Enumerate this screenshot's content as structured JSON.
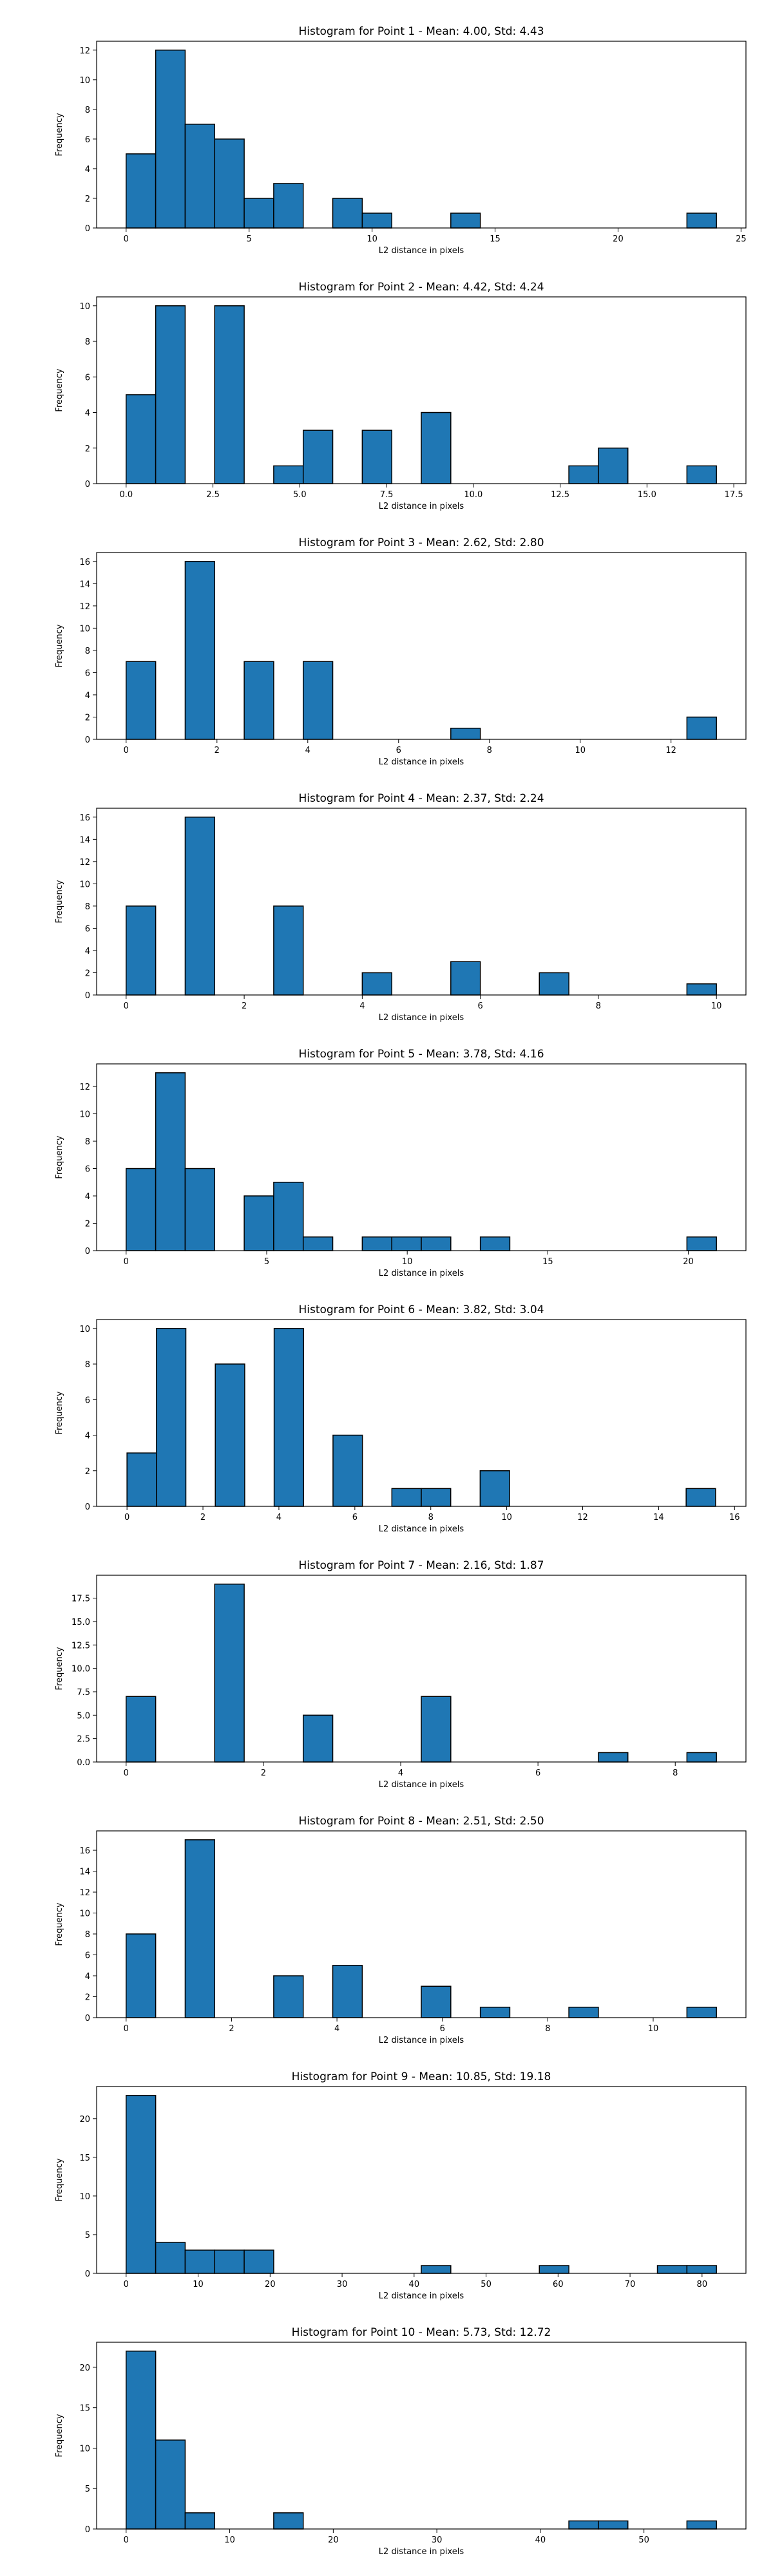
{
  "style": {
    "bar_color": "#1f77b4",
    "edge_color": "#000000",
    "background": "#ffffff"
  },
  "chart_data": [
    {
      "type": "bar",
      "title": "Histogram for Point 1 - Mean: 4.00, Std: 4.43",
      "xlabel": "L2 distance in pixels",
      "ylabel": "Frequency",
      "xlim": [
        -1.2,
        25.2
      ],
      "ylim": [
        0,
        12.6
      ],
      "xticks": [
        0,
        5,
        10,
        15,
        20,
        25
      ],
      "xtick_labels": [
        "0",
        "5",
        "10",
        "15",
        "20",
        "25"
      ],
      "yticks": [
        0,
        2,
        4,
        6,
        8,
        10,
        12
      ],
      "ytick_labels": [
        "0",
        "2",
        "4",
        "6",
        "8",
        "10",
        "12"
      ],
      "bin_edges": [
        0.0,
        1.2,
        2.4,
        3.6,
        4.8,
        6.0,
        7.2,
        8.4,
        9.6,
        10.8,
        12.0,
        13.2,
        14.4,
        15.6,
        16.8,
        18.0,
        19.2,
        20.4,
        21.6,
        22.8,
        24.0
      ],
      "values": [
        5,
        12,
        7,
        6,
        2,
        3,
        0,
        2,
        1,
        0,
        0,
        1,
        0,
        0,
        0,
        0,
        0,
        0,
        0,
        1
      ],
      "grid": false
    },
    {
      "type": "bar",
      "title": "Histogram for Point 2 - Mean: 4.42, Std: 4.24",
      "xlabel": "L2 distance in pixels",
      "ylabel": "Frequency",
      "xlim": [
        -0.85,
        17.85
      ],
      "ylim": [
        0,
        10.5
      ],
      "xticks": [
        0.0,
        2.5,
        5.0,
        7.5,
        10.0,
        12.5,
        15.0,
        17.5
      ],
      "xtick_labels": [
        "0.0",
        "2.5",
        "5.0",
        "7.5",
        "10.0",
        "12.5",
        "15.0",
        "17.5"
      ],
      "yticks": [
        0,
        2,
        4,
        6,
        8,
        10
      ],
      "ytick_labels": [
        "0",
        "2",
        "4",
        "6",
        "8",
        "10"
      ],
      "bin_edges": [
        0.0,
        0.85,
        1.7,
        2.55,
        3.4,
        4.25,
        5.1,
        5.95,
        6.8,
        7.65,
        8.5,
        9.35,
        10.2,
        11.05,
        11.9,
        12.75,
        13.6,
        14.45,
        15.3,
        16.15,
        17.0
      ],
      "values": [
        5,
        10,
        0,
        10,
        0,
        1,
        3,
        0,
        3,
        0,
        4,
        0,
        0,
        0,
        0,
        1,
        2,
        0,
        0,
        1
      ],
      "grid": false
    },
    {
      "type": "bar",
      "title": "Histogram for Point 3 - Mean: 2.62, Std: 2.80",
      "xlabel": "L2 distance in pixels",
      "ylabel": "Frequency",
      "xlim": [
        -0.65,
        13.65
      ],
      "ylim": [
        0,
        16.8
      ],
      "xticks": [
        0,
        2,
        4,
        6,
        8,
        10,
        12
      ],
      "xtick_labels": [
        "0",
        "2",
        "4",
        "6",
        "8",
        "10",
        "12"
      ],
      "yticks": [
        0,
        2,
        4,
        6,
        8,
        10,
        12,
        14,
        16
      ],
      "ytick_labels": [
        "0",
        "2",
        "4",
        "6",
        "8",
        "10",
        "12",
        "14",
        "16"
      ],
      "bin_edges": [
        0.0,
        0.65,
        1.3,
        1.95,
        2.6,
        3.25,
        3.9,
        4.55,
        5.2,
        5.85,
        6.5,
        7.15,
        7.8,
        8.45,
        9.1,
        9.75,
        10.4,
        11.05,
        11.7,
        12.35,
        13.0
      ],
      "values": [
        7,
        0,
        16,
        0,
        7,
        0,
        7,
        0,
        0,
        0,
        0,
        1,
        0,
        0,
        0,
        0,
        0,
        0,
        0,
        2
      ],
      "grid": false
    },
    {
      "type": "bar",
      "title": "Histogram for Point 4 - Mean: 2.37, Std: 2.24",
      "xlabel": "L2 distance in pixels",
      "ylabel": "Frequency",
      "xlim": [
        -0.5,
        10.5
      ],
      "ylim": [
        0,
        16.8
      ],
      "xticks": [
        0,
        2,
        4,
        6,
        8,
        10
      ],
      "xtick_labels": [
        "0",
        "2",
        "4",
        "6",
        "8",
        "10"
      ],
      "yticks": [
        0,
        2,
        4,
        6,
        8,
        10,
        12,
        14,
        16
      ],
      "ytick_labels": [
        "0",
        "2",
        "4",
        "6",
        "8",
        "10",
        "12",
        "14",
        "16"
      ],
      "bin_edges": [
        0.0,
        0.5,
        1.0,
        1.5,
        2.0,
        2.5,
        3.0,
        3.5,
        4.0,
        4.5,
        5.0,
        5.5,
        6.0,
        6.5,
        7.0,
        7.5,
        8.0,
        8.5,
        9.0,
        9.5,
        10.0
      ],
      "values": [
        8,
        0,
        16,
        0,
        0,
        8,
        0,
        0,
        2,
        0,
        0,
        3,
        0,
        0,
        2,
        0,
        0,
        0,
        0,
        1
      ],
      "grid": false
    },
    {
      "type": "bar",
      "title": "Histogram for Point 5 - Mean: 3.78, Std: 4.16",
      "xlabel": "L2 distance in pixels",
      "ylabel": "Frequency",
      "xlim": [
        -1.05,
        22.05
      ],
      "ylim": [
        0,
        13.65
      ],
      "xticks": [
        0,
        5,
        10,
        15,
        20
      ],
      "xtick_labels": [
        "0",
        "5",
        "10",
        "15",
        "20"
      ],
      "yticks": [
        0,
        2,
        4,
        6,
        8,
        10,
        12
      ],
      "ytick_labels": [
        "0",
        "2",
        "4",
        "6",
        "8",
        "10",
        "12"
      ],
      "bin_edges": [
        0.0,
        1.05,
        2.1,
        3.15,
        4.2,
        5.25,
        6.3,
        7.35,
        8.4,
        9.45,
        10.5,
        11.55,
        12.6,
        13.65,
        14.7,
        15.75,
        16.8,
        17.85,
        18.9,
        19.95,
        21.0
      ],
      "values": [
        6,
        13,
        6,
        0,
        4,
        5,
        1,
        0,
        1,
        1,
        1,
        0,
        1,
        0,
        0,
        0,
        0,
        0,
        0,
        1
      ],
      "grid": false
    },
    {
      "type": "bar",
      "title": "Histogram for Point 6 - Mean: 3.82, Std: 3.04",
      "xlabel": "L2 distance in pixels",
      "ylabel": "Frequency",
      "xlim": [
        -0.8,
        16.3
      ],
      "ylim": [
        0,
        10.5
      ],
      "xticks": [
        0,
        2,
        4,
        6,
        8,
        10,
        12,
        14,
        16
      ],
      "xtick_labels": [
        "0",
        "2",
        "4",
        "6",
        "8",
        "10",
        "12",
        "14",
        "16"
      ],
      "yticks": [
        0,
        2,
        4,
        6,
        8,
        10
      ],
      "ytick_labels": [
        "0",
        "2",
        "4",
        "6",
        "8",
        "10"
      ],
      "bin_edges": [
        0.0,
        0.775,
        1.55,
        2.325,
        3.1,
        3.875,
        4.65,
        5.425,
        6.2,
        6.975,
        7.75,
        8.525,
        9.3,
        10.075,
        10.85,
        11.625,
        12.4,
        13.175,
        13.95,
        14.725,
        15.5
      ],
      "values": [
        3,
        10,
        0,
        8,
        0,
        10,
        0,
        4,
        0,
        1,
        1,
        0,
        2,
        0,
        0,
        0,
        0,
        0,
        0,
        1
      ],
      "grid": false
    },
    {
      "type": "bar",
      "title": "Histogram for Point 7 - Mean: 2.16, Std: 1.87",
      "xlabel": "L2 distance in pixels",
      "ylabel": "Frequency",
      "xlim": [
        -0.43,
        9.03
      ],
      "ylim": [
        0,
        19.95
      ],
      "xticks": [
        0,
        2,
        4,
        6,
        8
      ],
      "xtick_labels": [
        "0",
        "2",
        "4",
        "6",
        "8"
      ],
      "yticks": [
        0.0,
        2.5,
        5.0,
        7.5,
        10.0,
        12.5,
        15.0,
        17.5
      ],
      "ytick_labels": [
        "0.0",
        "2.5",
        "5.0",
        "7.5",
        "10.0",
        "12.5",
        "15.0",
        "17.5"
      ],
      "bin_edges": [
        0.0,
        0.43,
        0.86,
        1.29,
        1.72,
        2.15,
        2.58,
        3.01,
        3.44,
        3.87,
        4.3,
        4.73,
        5.16,
        5.59,
        6.02,
        6.45,
        6.88,
        7.31,
        7.74,
        8.17,
        8.6
      ],
      "values": [
        7,
        0,
        0,
        19,
        0,
        0,
        5,
        0,
        0,
        0,
        7,
        0,
        0,
        0,
        0,
        0,
        1,
        0,
        0,
        1
      ],
      "grid": false
    },
    {
      "type": "bar",
      "title": "Histogram for Point 8 - Mean: 2.51, Std: 2.50",
      "xlabel": "L2 distance in pixels",
      "ylabel": "Frequency",
      "xlim": [
        -0.56,
        11.76
      ],
      "ylim": [
        0,
        17.85
      ],
      "xticks": [
        0,
        2,
        4,
        6,
        8,
        10
      ],
      "xtick_labels": [
        "0",
        "2",
        "4",
        "6",
        "8",
        "10"
      ],
      "yticks": [
        0,
        2,
        4,
        6,
        8,
        10,
        12,
        14,
        16
      ],
      "ytick_labels": [
        "0",
        "2",
        "4",
        "6",
        "8",
        "10",
        "12",
        "14",
        "16"
      ],
      "bin_edges": [
        0.0,
        0.56,
        1.12,
        1.68,
        2.24,
        2.8,
        3.36,
        3.92,
        4.48,
        5.04,
        5.6,
        6.16,
        6.72,
        7.28,
        7.84,
        8.4,
        8.96,
        9.52,
        10.08,
        10.64,
        11.2
      ],
      "values": [
        8,
        0,
        17,
        0,
        0,
        4,
        0,
        5,
        0,
        0,
        3,
        0,
        1,
        0,
        0,
        1,
        0,
        0,
        0,
        1
      ],
      "grid": false
    },
    {
      "type": "bar",
      "title": "Histogram for Point 9 - Mean: 10.85, Std: 19.18",
      "xlabel": "L2 distance in pixels",
      "ylabel": "Frequency",
      "xlim": [
        -4.1,
        86.1
      ],
      "ylim": [
        0,
        24.15
      ],
      "xticks": [
        0,
        10,
        20,
        30,
        40,
        50,
        60,
        70,
        80
      ],
      "xtick_labels": [
        "0",
        "10",
        "20",
        "30",
        "40",
        "50",
        "60",
        "70",
        "80"
      ],
      "yticks": [
        0,
        5,
        10,
        15,
        20
      ],
      "ytick_labels": [
        "0",
        "5",
        "10",
        "15",
        "20"
      ],
      "bin_edges": [
        0.0,
        4.1,
        8.2,
        12.3,
        16.4,
        20.5,
        24.6,
        28.7,
        32.8,
        36.9,
        41.0,
        45.1,
        49.2,
        53.3,
        57.4,
        61.5,
        65.6,
        69.7,
        73.8,
        77.9,
        82.0
      ],
      "values": [
        23,
        4,
        3,
        3,
        3,
        0,
        0,
        0,
        0,
        0,
        1,
        0,
        0,
        0,
        1,
        0,
        0,
        0,
        1,
        1
      ],
      "grid": false
    },
    {
      "type": "bar",
      "title": "Histogram for Point 10 - Mean: 5.73, Std: 12.72",
      "xlabel": "L2 distance in pixels",
      "ylabel": "Frequency",
      "xlim": [
        -2.85,
        59.85
      ],
      "ylim": [
        0,
        23.1
      ],
      "xticks": [
        0,
        10,
        20,
        30,
        40,
        50
      ],
      "xtick_labels": [
        "0",
        "10",
        "20",
        "30",
        "40",
        "50"
      ],
      "yticks": [
        0,
        5,
        10,
        15,
        20
      ],
      "ytick_labels": [
        "0",
        "5",
        "10",
        "15",
        "20"
      ],
      "bin_edges": [
        0.0,
        2.85,
        5.7,
        8.55,
        11.4,
        14.25,
        17.1,
        19.95,
        22.8,
        25.65,
        28.5,
        31.35,
        34.2,
        37.05,
        39.9,
        42.75,
        45.6,
        48.45,
        51.3,
        54.15,
        57.0
      ],
      "values": [
        22,
        11,
        2,
        0,
        0,
        2,
        0,
        0,
        0,
        0,
        0,
        0,
        0,
        0,
        0,
        1,
        1,
        0,
        0,
        1
      ],
      "grid": false
    }
  ]
}
